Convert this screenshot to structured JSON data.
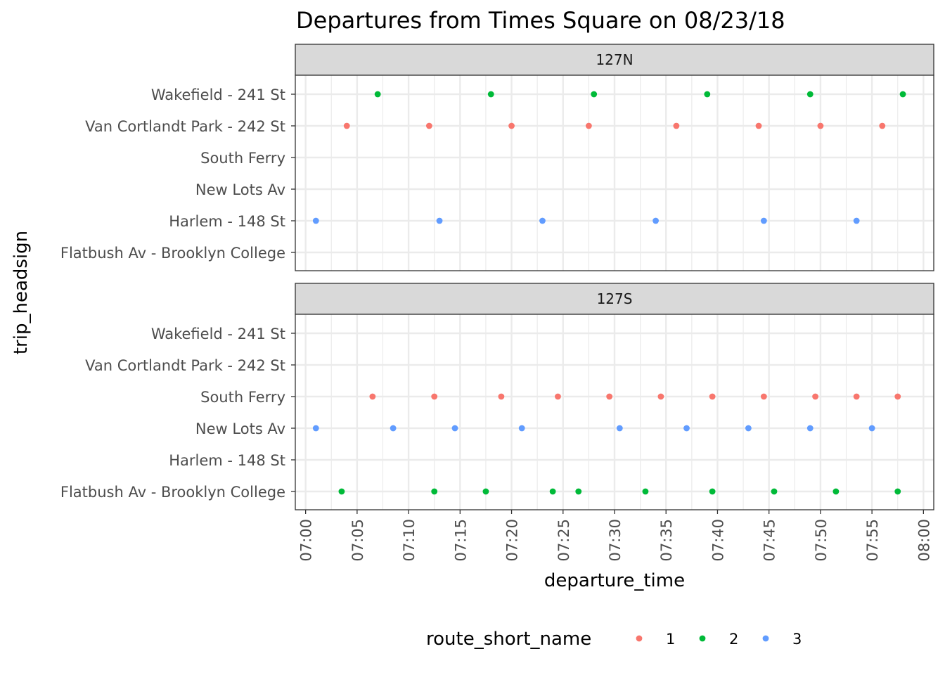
{
  "chart_data": {
    "type": "scatter",
    "title": "Departures from Times Square on 08/23/18",
    "xlabel": "departure_time",
    "ylabel": "trip_headsign",
    "xlim": [
      "06:59",
      "08:01"
    ],
    "xticks": [
      "07:00",
      "07:05",
      "07:10",
      "07:15",
      "07:20",
      "07:25",
      "07:30",
      "07:35",
      "07:40",
      "07:45",
      "07:50",
      "07:55",
      "08:00"
    ],
    "categories": [
      "Wakefield - 241 St",
      "Van Cortlandt Park - 242 St",
      "South Ferry",
      "New Lots Av",
      "Harlem - 148 St",
      "Flatbush Av - Brooklyn College"
    ],
    "grid": true,
    "legend": {
      "title": "route_short_name",
      "position": "bottom",
      "items": [
        {
          "label": "1",
          "color": "#F8766D"
        },
        {
          "label": "2",
          "color": "#00BA38"
        },
        {
          "label": "3",
          "color": "#619CFF"
        }
      ]
    },
    "panels": [
      {
        "strip": "127N",
        "series": [
          {
            "name": "1",
            "color": "#F8766D",
            "points": [
              {
                "x": "07:04",
                "y": "Van Cortlandt Park - 242 St"
              },
              {
                "x": "07:12",
                "y": "Van Cortlandt Park - 242 St"
              },
              {
                "x": "07:20",
                "y": "Van Cortlandt Park - 242 St"
              },
              {
                "x": "07:27.5",
                "y": "Van Cortlandt Park - 242 St"
              },
              {
                "x": "07:36",
                "y": "Van Cortlandt Park - 242 St"
              },
              {
                "x": "07:44",
                "y": "Van Cortlandt Park - 242 St"
              },
              {
                "x": "07:50",
                "y": "Van Cortlandt Park - 242 St"
              },
              {
                "x": "07:56",
                "y": "Van Cortlandt Park - 242 St"
              }
            ]
          },
          {
            "name": "2",
            "color": "#00BA38",
            "points": [
              {
                "x": "07:07",
                "y": "Wakefield - 241 St"
              },
              {
                "x": "07:18",
                "y": "Wakefield - 241 St"
              },
              {
                "x": "07:28",
                "y": "Wakefield - 241 St"
              },
              {
                "x": "07:39",
                "y": "Wakefield - 241 St"
              },
              {
                "x": "07:49",
                "y": "Wakefield - 241 St"
              },
              {
                "x": "07:58",
                "y": "Wakefield - 241 St"
              }
            ]
          },
          {
            "name": "3",
            "color": "#619CFF",
            "points": [
              {
                "x": "07:01",
                "y": "Harlem - 148 St"
              },
              {
                "x": "07:13",
                "y": "Harlem - 148 St"
              },
              {
                "x": "07:23",
                "y": "Harlem - 148 St"
              },
              {
                "x": "07:34",
                "y": "Harlem - 148 St"
              },
              {
                "x": "07:44.5",
                "y": "Harlem - 148 St"
              },
              {
                "x": "07:53.5",
                "y": "Harlem - 148 St"
              }
            ]
          }
        ]
      },
      {
        "strip": "127S",
        "series": [
          {
            "name": "1",
            "color": "#F8766D",
            "points": [
              {
                "x": "07:06.5",
                "y": "South Ferry"
              },
              {
                "x": "07:12.5",
                "y": "South Ferry"
              },
              {
                "x": "07:19",
                "y": "South Ferry"
              },
              {
                "x": "07:24.5",
                "y": "South Ferry"
              },
              {
                "x": "07:29.5",
                "y": "South Ferry"
              },
              {
                "x": "07:34.5",
                "y": "South Ferry"
              },
              {
                "x": "07:39.5",
                "y": "South Ferry"
              },
              {
                "x": "07:44.5",
                "y": "South Ferry"
              },
              {
                "x": "07:49.5",
                "y": "South Ferry"
              },
              {
                "x": "07:53.5",
                "y": "South Ferry"
              },
              {
                "x": "07:57.5",
                "y": "South Ferry"
              }
            ]
          },
          {
            "name": "2",
            "color": "#00BA38",
            "points": [
              {
                "x": "07:03.5",
                "y": "Flatbush Av - Brooklyn College"
              },
              {
                "x": "07:12.5",
                "y": "Flatbush Av - Brooklyn College"
              },
              {
                "x": "07:17.5",
                "y": "Flatbush Av - Brooklyn College"
              },
              {
                "x": "07:24",
                "y": "Flatbush Av - Brooklyn College"
              },
              {
                "x": "07:26.5",
                "y": "Flatbush Av - Brooklyn College"
              },
              {
                "x": "07:33",
                "y": "Flatbush Av - Brooklyn College"
              },
              {
                "x": "07:39.5",
                "y": "Flatbush Av - Brooklyn College"
              },
              {
                "x": "07:45.5",
                "y": "Flatbush Av - Brooklyn College"
              },
              {
                "x": "07:51.5",
                "y": "Flatbush Av - Brooklyn College"
              },
              {
                "x": "07:57.5",
                "y": "Flatbush Av - Brooklyn College"
              }
            ]
          },
          {
            "name": "3",
            "color": "#619CFF",
            "points": [
              {
                "x": "07:01",
                "y": "New Lots Av"
              },
              {
                "x": "07:08.5",
                "y": "New Lots Av"
              },
              {
                "x": "07:14.5",
                "y": "New Lots Av"
              },
              {
                "x": "07:21",
                "y": "New Lots Av"
              },
              {
                "x": "07:30.5",
                "y": "New Lots Av"
              },
              {
                "x": "07:37",
                "y": "New Lots Av"
              },
              {
                "x": "07:43",
                "y": "New Lots Av"
              },
              {
                "x": "07:49",
                "y": "New Lots Av"
              },
              {
                "x": "07:55",
                "y": "New Lots Av"
              }
            ]
          }
        ]
      }
    ]
  }
}
